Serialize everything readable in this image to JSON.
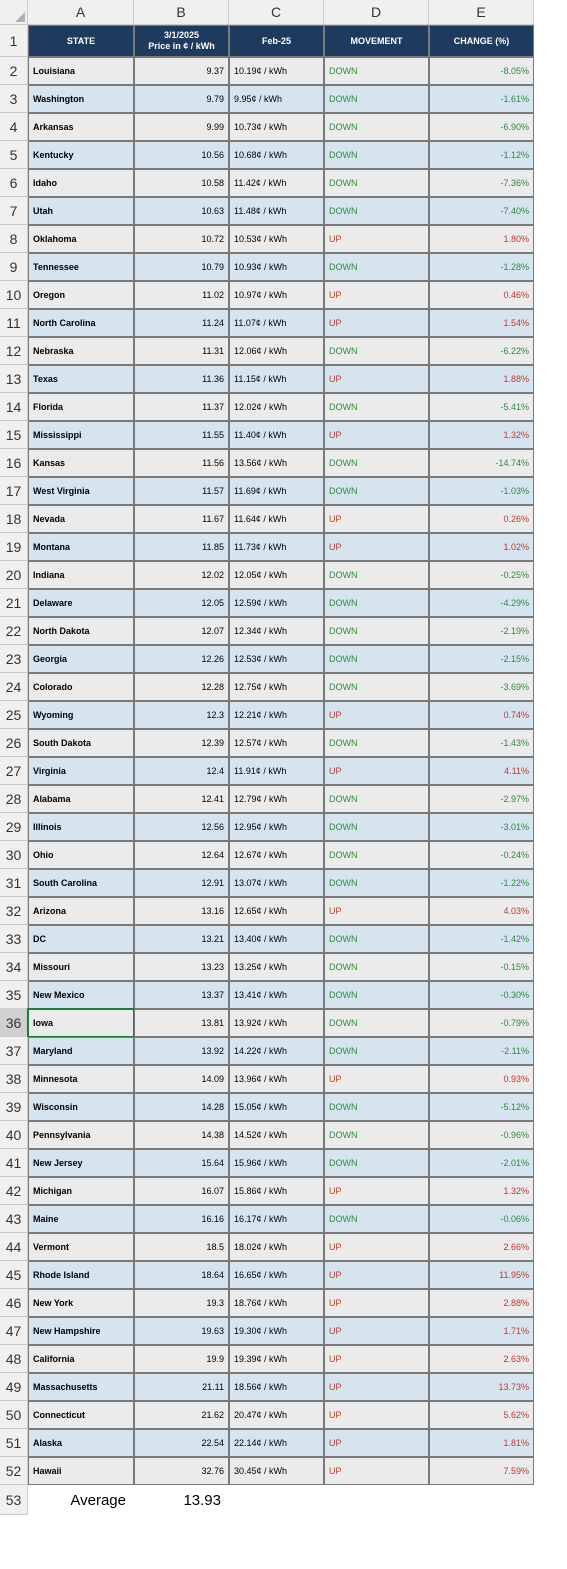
{
  "sheet": {
    "columns": [
      "A",
      "B",
      "C",
      "D",
      "E"
    ],
    "header": {
      "A": "STATE",
      "B": "3/1/2025\nPrice in ¢ / kWh",
      "C": "Feb-25",
      "D": "MOVEMENT",
      "E": "CHANGE (%)"
    },
    "colors": {
      "header_bg": "#1e3a5f",
      "header_fg": "#ffffff",
      "row_even": "#ebebeb",
      "row_odd": "#d6e4f0",
      "up": "#c0392b",
      "down": "#2e8b3d",
      "colhdr_bg": "#f0f0f0",
      "border": "#7a7a7a"
    },
    "selected_row": 36,
    "rows": [
      {
        "state": "Louisiana",
        "price": "9.37",
        "feb": "10.19¢ / kWh",
        "mov": "DOWN",
        "chg": "-8.05%"
      },
      {
        "state": "Washington",
        "price": "9.79",
        "feb": "9.95¢ / kWh",
        "mov": "DOWN",
        "chg": "-1.61%"
      },
      {
        "state": "Arkansas",
        "price": "9.99",
        "feb": "10.73¢ / kWh",
        "mov": "DOWN",
        "chg": "-6.90%"
      },
      {
        "state": "Kentucky",
        "price": "10.56",
        "feb": "10.68¢ / kWh",
        "mov": "DOWN",
        "chg": "-1.12%"
      },
      {
        "state": "Idaho",
        "price": "10.58",
        "feb": "11.42¢ / kWh",
        "mov": "DOWN",
        "chg": "-7.36%"
      },
      {
        "state": "Utah",
        "price": "10.63",
        "feb": "11.48¢ / kWh",
        "mov": "DOWN",
        "chg": "-7.40%"
      },
      {
        "state": "Oklahoma",
        "price": "10.72",
        "feb": "10.53¢ / kWh",
        "mov": "UP",
        "chg": "1.80%"
      },
      {
        "state": "Tennessee",
        "price": "10.79",
        "feb": "10.93¢ / kWh",
        "mov": "DOWN",
        "chg": "-1.28%"
      },
      {
        "state": "Oregon",
        "price": "11.02",
        "feb": "10.97¢ / kWh",
        "mov": "UP",
        "chg": "0.46%"
      },
      {
        "state": "North Carolina",
        "price": "11.24",
        "feb": "11.07¢ / kWh",
        "mov": "UP",
        "chg": "1.54%"
      },
      {
        "state": "Nebraska",
        "price": "11.31",
        "feb": "12.06¢ / kWh",
        "mov": "DOWN",
        "chg": "-6.22%"
      },
      {
        "state": "Texas",
        "price": "11.36",
        "feb": "11.15¢ / kWh",
        "mov": "UP",
        "chg": "1.88%"
      },
      {
        "state": "Florida",
        "price": "11.37",
        "feb": "12.02¢ / kWh",
        "mov": "DOWN",
        "chg": "-5.41%"
      },
      {
        "state": "Mississippi",
        "price": "11.55",
        "feb": "11.40¢ / kWh",
        "mov": "UP",
        "chg": "1.32%"
      },
      {
        "state": "Kansas",
        "price": "11.56",
        "feb": "13.56¢ / kWh",
        "mov": "DOWN",
        "chg": "-14.74%"
      },
      {
        "state": "West Virginia",
        "price": "11.57",
        "feb": "11.69¢ / kWh",
        "mov": "DOWN",
        "chg": "-1.03%"
      },
      {
        "state": "Nevada",
        "price": "11.67",
        "feb": "11.64¢ / kWh",
        "mov": "UP",
        "chg": "0.26%"
      },
      {
        "state": "Montana",
        "price": "11.85",
        "feb": "11.73¢ / kWh",
        "mov": "UP",
        "chg": "1.02%"
      },
      {
        "state": "Indiana",
        "price": "12.02",
        "feb": "12.05¢ / kWh",
        "mov": "DOWN",
        "chg": "-0.25%"
      },
      {
        "state": "Delaware",
        "price": "12.05",
        "feb": "12.59¢ / kWh",
        "mov": "DOWN",
        "chg": "-4.29%"
      },
      {
        "state": "North Dakota",
        "price": "12.07",
        "feb": "12.34¢ / kWh",
        "mov": "DOWN",
        "chg": "-2.19%"
      },
      {
        "state": "Georgia",
        "price": "12.26",
        "feb": "12.53¢ / kWh",
        "mov": "DOWN",
        "chg": "-2.15%"
      },
      {
        "state": "Colorado",
        "price": "12.28",
        "feb": "12.75¢ / kWh",
        "mov": "DOWN",
        "chg": "-3.69%"
      },
      {
        "state": "Wyoming",
        "price": "12.3",
        "feb": "12.21¢ / kWh",
        "mov": "UP",
        "chg": "0.74%"
      },
      {
        "state": "South Dakota",
        "price": "12.39",
        "feb": "12.57¢ / kWh",
        "mov": "DOWN",
        "chg": "-1.43%"
      },
      {
        "state": "Virginia",
        "price": "12.4",
        "feb": "11.91¢ / kWh",
        "mov": "UP",
        "chg": "4.11%"
      },
      {
        "state": "Alabama",
        "price": "12.41",
        "feb": "12.79¢ / kWh",
        "mov": "DOWN",
        "chg": "-2.97%"
      },
      {
        "state": "Illinois",
        "price": "12.56",
        "feb": "12.95¢ / kWh",
        "mov": "DOWN",
        "chg": "-3.01%"
      },
      {
        "state": "Ohio",
        "price": "12.64",
        "feb": "12.67¢ / kWh",
        "mov": "DOWN",
        "chg": "-0.24%"
      },
      {
        "state": "South Carolina",
        "price": "12.91",
        "feb": "13.07¢ / kWh",
        "mov": "DOWN",
        "chg": "-1.22%"
      },
      {
        "state": "Arizona",
        "price": "13.16",
        "feb": "12.65¢ / kWh",
        "mov": "UP",
        "chg": "4.03%"
      },
      {
        "state": "DC",
        "price": "13.21",
        "feb": "13.40¢ / kWh",
        "mov": "DOWN",
        "chg": "-1.42%"
      },
      {
        "state": "Missouri",
        "price": "13.23",
        "feb": "13.25¢ / kWh",
        "mov": "DOWN",
        "chg": "-0.15%"
      },
      {
        "state": "New Mexico",
        "price": "13.37",
        "feb": "13.41¢ / kWh",
        "mov": "DOWN",
        "chg": "-0.30%"
      },
      {
        "state": "Iowa",
        "price": "13.81",
        "feb": "13.92¢ / kWh",
        "mov": "DOWN",
        "chg": "-0.79%"
      },
      {
        "state": "Maryland",
        "price": "13.92",
        "feb": "14.22¢ / kWh",
        "mov": "DOWN",
        "chg": "-2.11%"
      },
      {
        "state": "Minnesota",
        "price": "14.09",
        "feb": "13.96¢ / kWh",
        "mov": "UP",
        "chg": "0.93%"
      },
      {
        "state": "Wisconsin",
        "price": "14.28",
        "feb": "15.05¢ / kWh",
        "mov": "DOWN",
        "chg": "-5.12%"
      },
      {
        "state": "Pennsylvania",
        "price": "14.38",
        "feb": "14.52¢ / kWh",
        "mov": "DOWN",
        "chg": "-0.96%"
      },
      {
        "state": "New Jersey",
        "price": "15.64",
        "feb": "15.96¢ / kWh",
        "mov": "DOWN",
        "chg": "-2.01%"
      },
      {
        "state": "Michigan",
        "price": "16.07",
        "feb": "15.86¢ / kWh",
        "mov": "UP",
        "chg": "1.32%"
      },
      {
        "state": "Maine",
        "price": "16.16",
        "feb": "16.17¢ / kWh",
        "mov": "DOWN",
        "chg": "-0.06%"
      },
      {
        "state": "Vermont",
        "price": "18.5",
        "feb": "18.02¢ / kWh",
        "mov": "UP",
        "chg": "2.66%"
      },
      {
        "state": "Rhode Island",
        "price": "18.64",
        "feb": "16.65¢ / kWh",
        "mov": "UP",
        "chg": "11.95%"
      },
      {
        "state": "New York",
        "price": "19.3",
        "feb": "18.76¢ / kWh",
        "mov": "UP",
        "chg": "2.88%"
      },
      {
        "state": "New Hampshire",
        "price": "19.63",
        "feb": "19.30¢ / kWh",
        "mov": "UP",
        "chg": "1.71%"
      },
      {
        "state": "California",
        "price": "19.9",
        "feb": "19.39¢ / kWh",
        "mov": "UP",
        "chg": "2.63%"
      },
      {
        "state": "Massachusetts",
        "price": "21.11",
        "feb": "18.56¢ / kWh",
        "mov": "UP",
        "chg": "13.73%"
      },
      {
        "state": "Connecticut",
        "price": "21.62",
        "feb": "20.47¢ / kWh",
        "mov": "UP",
        "chg": "5.62%"
      },
      {
        "state": "Alaska",
        "price": "22.54",
        "feb": "22.14¢ / kWh",
        "mov": "UP",
        "chg": "1.81%"
      },
      {
        "state": "Hawaii",
        "price": "32.76",
        "feb": "30.45¢ / kWh",
        "mov": "UP",
        "chg": "7.59%"
      }
    ],
    "footer": {
      "label": "Average",
      "value": "13.93"
    }
  }
}
